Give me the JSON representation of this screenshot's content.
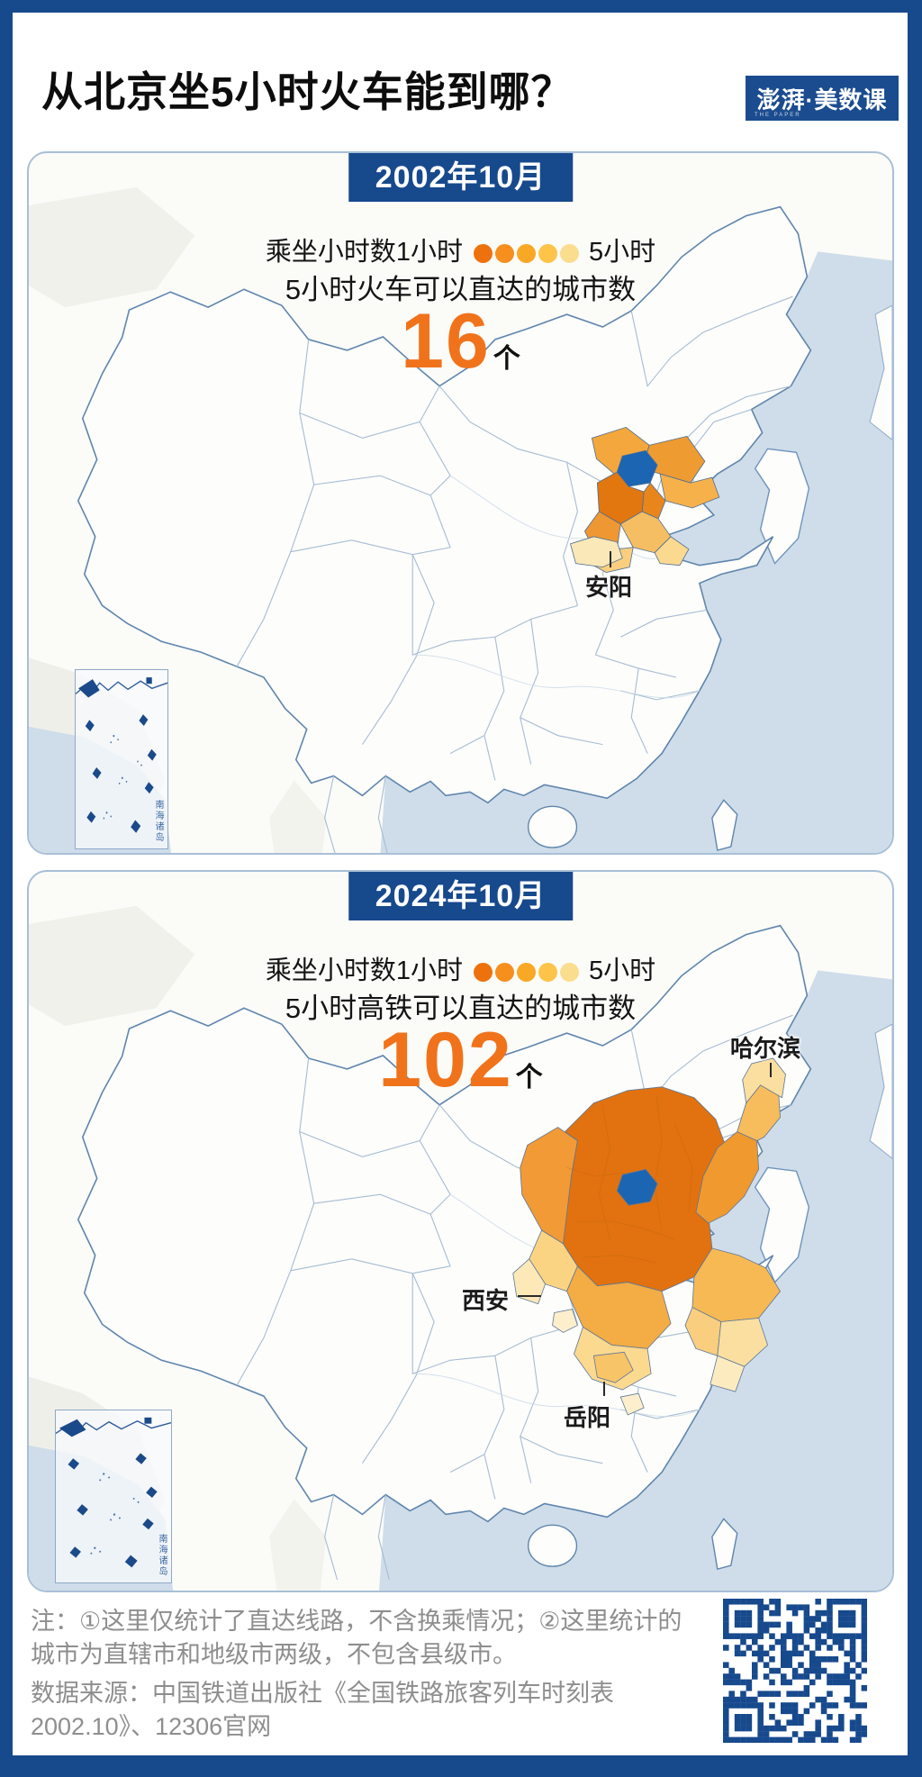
{
  "page": {
    "title": "从北京坐5小时火车能到哪？",
    "frame_color": "#17498D"
  },
  "logo": {
    "text": "澎湃·美数课",
    "subtext": "THE PAPER"
  },
  "legend": {
    "prefix": "乘坐小时数1小时",
    "suffix": "5小时",
    "dot_colors": [
      "#ED720E",
      "#F78F1E",
      "#F9A825",
      "#FDC449",
      "#FBDD8E"
    ]
  },
  "maps": [
    {
      "period": "2002年10月",
      "metric_label": "5小时火车可以直达的城市数",
      "count": "16",
      "count_unit": "个",
      "labels": {
        "anyang": "安阳"
      },
      "inset_label": "南海诸岛"
    },
    {
      "period": "2024年10月",
      "metric_label": "5小时高铁可以直达的城市数",
      "count": "102",
      "count_unit": "个",
      "labels": {
        "harbin": "哈尔滨",
        "xian": "西安",
        "yueyang": "岳阳"
      },
      "inset_label": "南海诸岛"
    }
  ],
  "footer": {
    "note_line1": "注：①这里仅统计了直达线路，不含换乘情况；②这里统计的",
    "note_line2": "城市为直辖市和地级市两级，不包含县级市。",
    "source_line1": "数据来源：中国铁道出版社《全国铁路旅客列车时刻表",
    "source_line2": "2002.10》、12306官网"
  },
  "chart_data": {
    "type": "choropleth-map-pair",
    "title": "从北京坐5小时火车能到哪？",
    "origin_city": "北京",
    "legend": {
      "min_label": "1小时",
      "max_label": "5小时",
      "colors": [
        "#ED720E",
        "#F78F1E",
        "#F9A825",
        "#FDC449",
        "#FBDD8E"
      ]
    },
    "maps": [
      {
        "period": "2002年10月",
        "metric": "5小时火车可以直达的城市数",
        "value": 16,
        "annotated_cities": [
          "安阳"
        ]
      },
      {
        "period": "2024年10月",
        "metric": "5小时高铁可以直达的城市数",
        "value": 102,
        "annotated_cities": [
          "哈尔滨",
          "西安",
          "岳阳"
        ]
      }
    ]
  }
}
